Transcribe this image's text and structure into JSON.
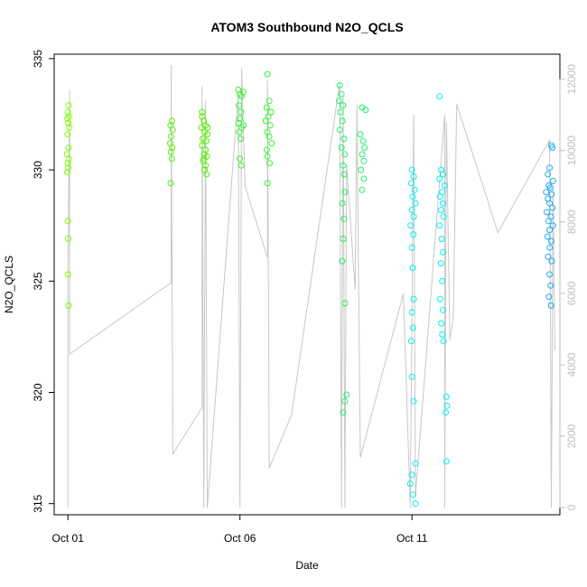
{
  "chart_data": {
    "type": "scatter",
    "title": "ATOM3 Southbound N2O_QCLS",
    "xlabel": "Date",
    "ylabel": "N2O_QCLS",
    "ylim": [
      314.5,
      335.2
    ],
    "y_ticks": [
      315,
      320,
      325,
      330,
      335
    ],
    "x_ticks": [
      {
        "day": 1,
        "label": "Oct 01"
      },
      {
        "day": 6,
        "label": "Oct 06"
      },
      {
        "day": 11,
        "label": "Oct 11"
      }
    ],
    "xlim_days": [
      0.6,
      15.3
    ],
    "secondary_axis": {
      "range": [
        -200,
        12700
      ],
      "ticks": [
        0,
        2000,
        4000,
        6000,
        8000,
        10000,
        12000
      ],
      "color": "#bebebe",
      "line_color": "#c8c8c8"
    },
    "altitude_profile": [
      [
        1.0,
        0
      ],
      [
        1.0,
        6500
      ],
      [
        1.05,
        11700
      ],
      [
        1.05,
        4300
      ],
      [
        4.0,
        6300
      ],
      [
        4.0,
        12400
      ],
      [
        4.05,
        1500
      ],
      [
        4.9,
        2800
      ],
      [
        4.9,
        11800
      ],
      [
        4.95,
        0
      ],
      [
        5.0,
        11400
      ],
      [
        5.05,
        0
      ],
      [
        5.95,
        11600
      ],
      [
        6.0,
        0
      ],
      [
        6.05,
        12300
      ],
      [
        6.15,
        9000
      ],
      [
        6.8,
        7000
      ],
      [
        6.8,
        12000
      ],
      [
        6.85,
        1100
      ],
      [
        7.5,
        2600
      ],
      [
        8.9,
        11900
      ],
      [
        8.95,
        0
      ],
      [
        9.0,
        11500
      ],
      [
        9.05,
        0
      ],
      [
        9.1,
        9600
      ],
      [
        9.35,
        6100
      ],
      [
        9.4,
        11300
      ],
      [
        9.5,
        1400
      ],
      [
        10.75,
        6000
      ],
      [
        10.95,
        0
      ],
      [
        11.05,
        11000
      ],
      [
        11.1,
        300
      ],
      [
        11.95,
        11000
      ],
      [
        11.95,
        0
      ],
      [
        12.0,
        10800
      ],
      [
        12.1,
        4700
      ],
      [
        12.2,
        5300
      ],
      [
        12.3,
        11300
      ],
      [
        13.5,
        7700
      ],
      [
        15.0,
        10300
      ],
      [
        15.05,
        0
      ],
      [
        15.1,
        9000
      ],
      [
        15.15,
        4400
      ]
    ],
    "series": [
      {
        "color": "#7fff00",
        "points": [
          [
            1.02,
            332.9
          ],
          [
            1.0,
            332.6
          ],
          [
            1.03,
            332.4
          ],
          [
            0.98,
            332.3
          ],
          [
            1.01,
            332.1
          ],
          [
            1.04,
            331.9
          ],
          [
            0.99,
            331.6
          ],
          [
            1.02,
            331.0
          ],
          [
            0.97,
            330.7
          ],
          [
            1.03,
            330.5
          ],
          [
            1.0,
            330.3
          ],
          [
            1.01,
            330.1
          ],
          [
            0.98,
            329.9
          ],
          [
            1.0,
            327.7
          ],
          [
            1.01,
            326.9
          ],
          [
            1.0,
            325.3
          ],
          [
            1.02,
            323.9
          ]
        ]
      },
      {
        "color": "#55f000",
        "points": [
          [
            4.02,
            332.2
          ],
          [
            3.98,
            332.0
          ],
          [
            4.05,
            331.8
          ],
          [
            4.0,
            331.5
          ],
          [
            3.97,
            331.2
          ],
          [
            4.03,
            331.0
          ],
          [
            4.0,
            330.8
          ],
          [
            4.02,
            330.5
          ],
          [
            3.99,
            329.4
          ],
          [
            4.9,
            332.4
          ],
          [
            4.95,
            332.2
          ],
          [
            5.0,
            332.0
          ],
          [
            4.88,
            331.9
          ],
          [
            4.98,
            331.7
          ],
          [
            5.05,
            331.6
          ],
          [
            4.92,
            331.4
          ],
          [
            5.02,
            331.3
          ],
          [
            4.9,
            331.1
          ],
          [
            5.0,
            330.9
          ],
          [
            4.96,
            330.7
          ],
          [
            5.04,
            330.6
          ],
          [
            4.93,
            330.4
          ],
          [
            5.0,
            330.2
          ],
          [
            4.97,
            330.0
          ],
          [
            5.03,
            329.8
          ],
          [
            4.9,
            332.6
          ],
          [
            5.06,
            331.9
          ],
          [
            4.95,
            330.5
          ]
        ]
      },
      {
        "color": "#33f233",
        "points": [
          [
            5.95,
            333.6
          ],
          [
            6.0,
            333.4
          ],
          [
            6.05,
            333.3
          ],
          [
            6.1,
            333.5
          ],
          [
            5.97,
            332.9
          ],
          [
            6.03,
            332.6
          ],
          [
            6.0,
            332.3
          ],
          [
            5.96,
            332.1
          ],
          [
            6.05,
            331.9
          ],
          [
            6.1,
            332.0
          ],
          [
            5.98,
            331.7
          ],
          [
            6.02,
            331.4
          ],
          [
            6.0,
            330.5
          ],
          [
            6.04,
            330.2
          ],
          [
            6.8,
            334.3
          ],
          [
            6.85,
            333.1
          ],
          [
            6.78,
            332.8
          ],
          [
            6.9,
            332.6
          ],
          [
            6.82,
            332.4
          ],
          [
            6.75,
            332.2
          ],
          [
            6.88,
            332.0
          ],
          [
            6.8,
            331.7
          ],
          [
            6.85,
            331.5
          ],
          [
            6.92,
            331.2
          ],
          [
            6.78,
            330.9
          ],
          [
            6.8,
            330.6
          ],
          [
            6.86,
            330.3
          ],
          [
            6.8,
            329.4
          ]
        ]
      },
      {
        "color": "#22f06a",
        "points": [
          [
            8.9,
            333.8
          ],
          [
            8.95,
            333.4
          ],
          [
            8.88,
            333.1
          ],
          [
            9.0,
            332.9
          ],
          [
            8.92,
            332.6
          ],
          [
            8.98,
            332.2
          ],
          [
            8.9,
            331.8
          ],
          [
            9.02,
            331.4
          ],
          [
            8.95,
            331.0
          ],
          [
            9.05,
            330.7
          ],
          [
            9.0,
            330.2
          ],
          [
            9.03,
            329.8
          ],
          [
            9.05,
            329.0
          ],
          [
            8.98,
            328.5
          ],
          [
            9.02,
            327.8
          ],
          [
            9.0,
            326.9
          ],
          [
            8.97,
            325.9
          ],
          [
            9.05,
            324.0
          ],
          [
            9.1,
            319.9
          ],
          [
            9.05,
            319.6
          ],
          [
            9.0,
            319.1
          ],
          [
            9.55,
            332.8
          ],
          [
            9.65,
            332.7
          ],
          [
            9.5,
            331.6
          ],
          [
            9.58,
            331.3
          ],
          [
            9.62,
            331.0
          ],
          [
            9.55,
            330.7
          ],
          [
            9.6,
            330.4
          ],
          [
            9.52,
            330.0
          ],
          [
            9.6,
            329.6
          ],
          [
            9.55,
            329.1
          ]
        ]
      },
      {
        "color": "#00f0f0",
        "points": [
          [
            11.0,
            330.0
          ],
          [
            11.05,
            329.7
          ],
          [
            10.98,
            329.4
          ],
          [
            11.08,
            329.1
          ],
          [
            11.02,
            328.8
          ],
          [
            11.1,
            328.5
          ],
          [
            11.0,
            328.2
          ],
          [
            11.05,
            327.9
          ],
          [
            10.96,
            327.5
          ],
          [
            11.04,
            327.1
          ],
          [
            11.0,
            326.5
          ],
          [
            11.02,
            325.6
          ],
          [
            11.05,
            324.2
          ],
          [
            11.0,
            323.6
          ],
          [
            11.03,
            322.9
          ],
          [
            10.98,
            322.3
          ],
          [
            11.0,
            320.7
          ],
          [
            11.05,
            319.6
          ],
          [
            11.1,
            316.8
          ],
          [
            11.0,
            316.3
          ],
          [
            10.95,
            315.9
          ],
          [
            11.03,
            315.4
          ],
          [
            11.1,
            315.0
          ],
          [
            11.8,
            333.3
          ],
          [
            11.85,
            330.0
          ],
          [
            11.9,
            329.8
          ],
          [
            11.8,
            329.6
          ],
          [
            11.95,
            329.3
          ],
          [
            11.88,
            329.0
          ],
          [
            11.82,
            328.8
          ],
          [
            11.9,
            328.5
          ],
          [
            11.85,
            328.2
          ],
          [
            11.92,
            327.9
          ],
          [
            11.8,
            327.5
          ],
          [
            11.86,
            326.9
          ],
          [
            11.9,
            326.3
          ],
          [
            11.84,
            325.8
          ],
          [
            11.88,
            325.0
          ],
          [
            11.82,
            324.2
          ],
          [
            11.9,
            323.7
          ],
          [
            11.85,
            323.1
          ],
          [
            11.88,
            322.6
          ],
          [
            11.92,
            322.3
          ],
          [
            12.0,
            319.8
          ],
          [
            12.02,
            319.4
          ],
          [
            11.98,
            319.1
          ],
          [
            12.0,
            316.9
          ]
        ]
      },
      {
        "color": "#22aaf0",
        "points": [
          [
            15.05,
            331.1
          ],
          [
            15.08,
            331.0
          ],
          [
            15.0,
            330.1
          ],
          [
            14.95,
            329.8
          ],
          [
            15.1,
            329.5
          ],
          [
            14.98,
            329.3
          ],
          [
            15.02,
            329.2
          ],
          [
            14.9,
            329.0
          ],
          [
            15.06,
            328.9
          ],
          [
            14.95,
            328.7
          ],
          [
            15.0,
            328.5
          ],
          [
            15.08,
            328.3
          ],
          [
            14.92,
            328.1
          ],
          [
            15.04,
            327.9
          ],
          [
            14.97,
            327.7
          ],
          [
            15.1,
            327.5
          ],
          [
            15.0,
            327.3
          ],
          [
            14.94,
            327.0
          ],
          [
            15.05,
            326.8
          ],
          [
            15.0,
            326.5
          ],
          [
            14.96,
            326.1
          ],
          [
            15.06,
            325.9
          ],
          [
            15.0,
            325.3
          ],
          [
            15.03,
            324.8
          ],
          [
            14.98,
            324.3
          ],
          [
            15.04,
            323.9
          ]
        ]
      }
    ]
  }
}
